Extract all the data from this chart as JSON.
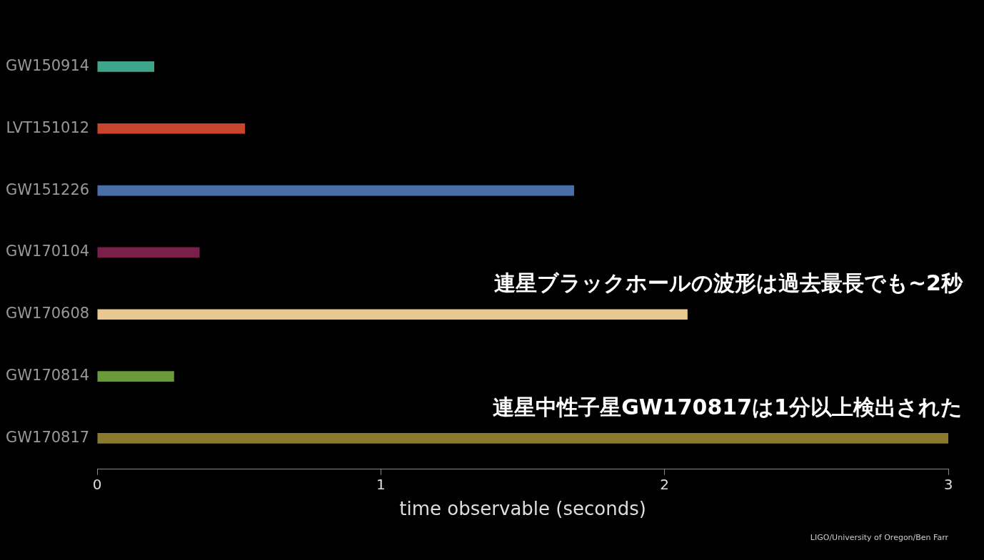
{
  "chart_data": {
    "type": "bar",
    "orientation": "horizontal",
    "categories": [
      "GW150914",
      "LVT151012",
      "GW151226",
      "GW170104",
      "GW170608",
      "GW170814",
      "GW170817"
    ],
    "values": [
      0.2,
      0.52,
      1.68,
      0.36,
      2.08,
      0.27,
      3
    ],
    "colors": [
      "#3fa58a",
      "#c8442a",
      "#4a6fa8",
      "#7a1e4a",
      "#e8c890",
      "#6a9a3a",
      "#8a7a30"
    ],
    "xlabel": "time observable (seconds)",
    "xlim": [
      0,
      3
    ],
    "xticks": [
      0,
      1,
      2,
      3
    ],
    "grid": false,
    "legend": false,
    "annotations": [
      "連星ブラックホールの波形は過去最長でも~2秒",
      "連星中性子星GW170817は1分以上検出された",
      "LIGO/University of Oregon/Ben Farr"
    ]
  }
}
